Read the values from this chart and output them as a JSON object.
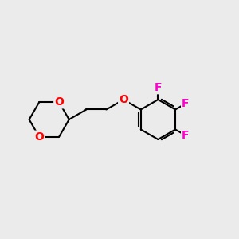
{
  "background_color": "#ebebeb",
  "bond_color": "#000000",
  "oxygen_color": "#ff0000",
  "fluorine_color": "#ff00cc",
  "bond_width": 1.5,
  "font_size": 10,
  "fig_size": [
    3.0,
    3.0
  ],
  "dpi": 100,
  "xlim": [
    0,
    10
  ],
  "ylim": [
    0,
    10
  ]
}
